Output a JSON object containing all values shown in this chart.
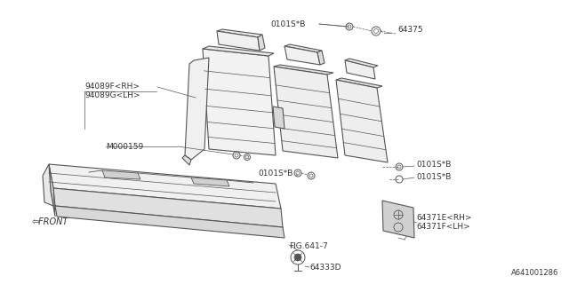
{
  "bg_color": "#ffffff",
  "lc": "#555555",
  "tc": "#333333",
  "lw": 0.8,
  "figw": 6.4,
  "figh": 3.2,
  "dpi": 100,
  "watermark": "A641001286",
  "label_94089F": "94089F<RH>",
  "label_94089G": "94089G<LH>",
  "label_M000159": "M000159",
  "label_0101SB": "0101S*B",
  "label_64375": "64375",
  "label_64371E": "64371E<RH>",
  "label_64371F": "64371F<LH>",
  "label_FIG6417": "FIG.641-7",
  "label_64333D": "64333D",
  "label_FRONT": "FRONT"
}
